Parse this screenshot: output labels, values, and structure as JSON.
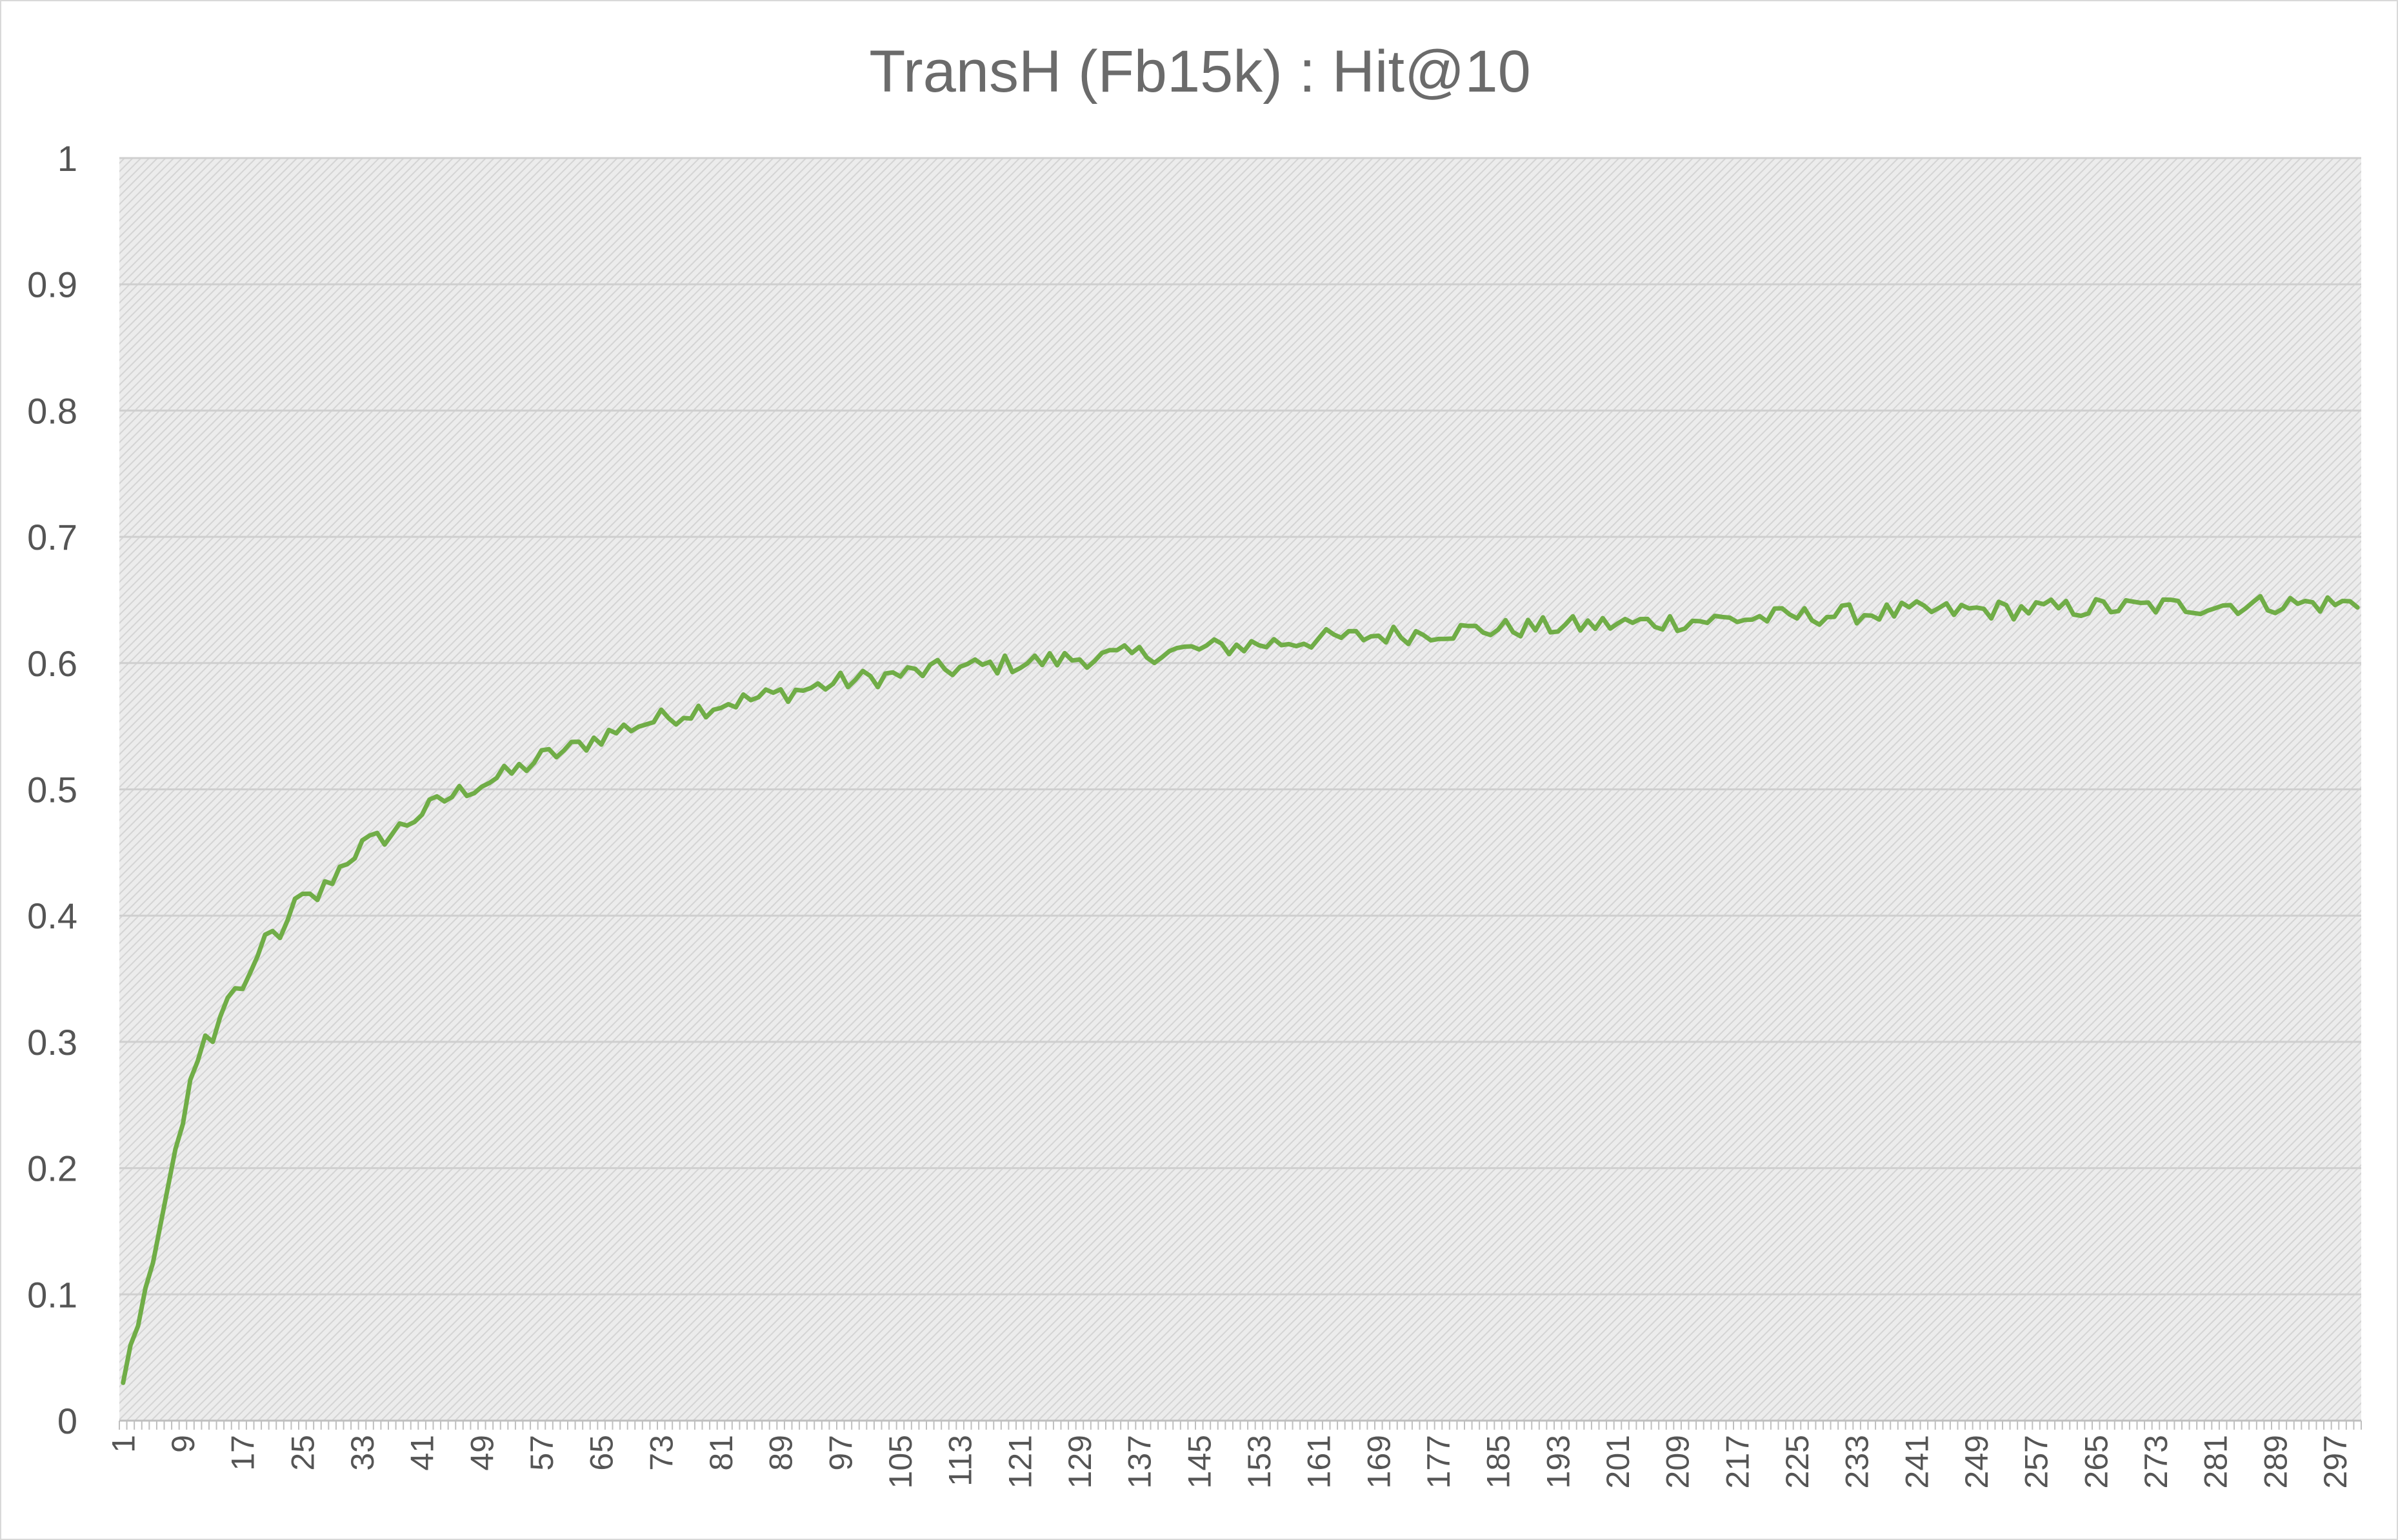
{
  "chart_data": {
    "type": "line",
    "title": "TransH (Fb15k) : Hit@10",
    "xlabel": "",
    "ylabel": "",
    "x_range": [
      1,
      300
    ],
    "x_tick_labels": [
      "1",
      "9",
      "17",
      "25",
      "33",
      "41",
      "49",
      "57",
      "65",
      "73",
      "81",
      "89",
      "97",
      "105",
      "113",
      "121",
      "129",
      "137",
      "145",
      "153",
      "161",
      "169",
      "177",
      "185",
      "193",
      "201",
      "209",
      "217",
      "225",
      "233",
      "241",
      "249",
      "257",
      "265",
      "273",
      "281",
      "289",
      "297"
    ],
    "ylim": [
      0,
      1
    ],
    "y_tick_labels": [
      "0",
      "0.1",
      "0.2",
      "0.3",
      "0.4",
      "0.5",
      "0.6",
      "0.7",
      "0.8",
      "0.9",
      "1"
    ],
    "grid": true,
    "legend": "none",
    "plot_background": "hatched light gray",
    "series": [
      {
        "color": "#70ad47",
        "anchors": [
          [
            1,
            0.03
          ],
          [
            2,
            0.06
          ],
          [
            3,
            0.075
          ],
          [
            4,
            0.105
          ],
          [
            5,
            0.125
          ],
          [
            6,
            0.155
          ],
          [
            7,
            0.185
          ],
          [
            8,
            0.215
          ],
          [
            9,
            0.235
          ],
          [
            10,
            0.27
          ],
          [
            11,
            0.285
          ],
          [
            12,
            0.305
          ],
          [
            13,
            0.3
          ],
          [
            14,
            0.32
          ],
          [
            15,
            0.335
          ],
          [
            17,
            0.345
          ],
          [
            19,
            0.36
          ],
          [
            20,
            0.382
          ],
          [
            21,
            0.385
          ],
          [
            23,
            0.39
          ],
          [
            24,
            0.41
          ],
          [
            25,
            0.412
          ],
          [
            27,
            0.415
          ],
          [
            29,
            0.43
          ],
          [
            31,
            0.445
          ],
          [
            33,
            0.455
          ],
          [
            37,
            0.465
          ],
          [
            41,
            0.482
          ],
          [
            45,
            0.495
          ],
          [
            49,
            0.505
          ],
          [
            53,
            0.513
          ],
          [
            57,
            0.525
          ],
          [
            61,
            0.532
          ],
          [
            65,
            0.542
          ],
          [
            69,
            0.55
          ],
          [
            73,
            0.556
          ],
          [
            77,
            0.562
          ],
          [
            81,
            0.568
          ],
          [
            85,
            0.571
          ],
          [
            89,
            0.576
          ],
          [
            93,
            0.58
          ],
          [
            97,
            0.585
          ],
          [
            101,
            0.588
          ],
          [
            105,
            0.591
          ],
          [
            109,
            0.594
          ],
          [
            113,
            0.596
          ],
          [
            117,
            0.598
          ],
          [
            121,
            0.6
          ],
          [
            125,
            0.602
          ],
          [
            129,
            0.604
          ],
          [
            133,
            0.605
          ],
          [
            137,
            0.607
          ],
          [
            141,
            0.609
          ],
          [
            145,
            0.611
          ],
          [
            149,
            0.613
          ],
          [
            153,
            0.615
          ],
          [
            157,
            0.617
          ],
          [
            161,
            0.619
          ],
          [
            165,
            0.62
          ],
          [
            169,
            0.622
          ],
          [
            173,
            0.623
          ],
          [
            177,
            0.625
          ],
          [
            181,
            0.626
          ],
          [
            185,
            0.627
          ],
          [
            189,
            0.628
          ],
          [
            193,
            0.629
          ],
          [
            197,
            0.63
          ],
          [
            201,
            0.631
          ],
          [
            205,
            0.632
          ],
          [
            209,
            0.633
          ],
          [
            213,
            0.634
          ],
          [
            217,
            0.635
          ],
          [
            221,
            0.636
          ],
          [
            225,
            0.637
          ],
          [
            229,
            0.638
          ],
          [
            233,
            0.639
          ],
          [
            237,
            0.64
          ],
          [
            241,
            0.641
          ],
          [
            245,
            0.641
          ],
          [
            249,
            0.642
          ],
          [
            253,
            0.642
          ],
          [
            257,
            0.643
          ],
          [
            261,
            0.643
          ],
          [
            265,
            0.644
          ],
          [
            269,
            0.644
          ],
          [
            273,
            0.645
          ],
          [
            277,
            0.645
          ],
          [
            281,
            0.646
          ],
          [
            285,
            0.646
          ],
          [
            289,
            0.647
          ],
          [
            293,
            0.647
          ],
          [
            297,
            0.647
          ],
          [
            300,
            0.647
          ]
        ],
        "noise_amplitude": 0.008
      }
    ]
  }
}
